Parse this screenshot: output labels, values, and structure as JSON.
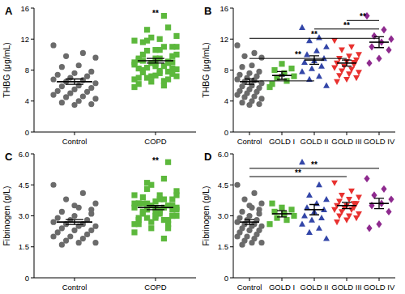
{
  "chart_data": [
    {
      "type": "scatter",
      "panel": "A",
      "y_label": "THBG (μg/mL)",
      "categories": [
        "Control",
        "COPD"
      ],
      "ylim": [
        0,
        16
      ],
      "yticks": [
        0,
        4,
        8,
        12,
        16
      ],
      "groups": [
        {
          "color": "#6b6b6b",
          "marker": "circle",
          "mean": 6.5,
          "sem": 0.35,
          "values": [
            11.2,
            10.2,
            9.8,
            9.6,
            8.6,
            8.4,
            7.8,
            7.6,
            7.4,
            7.2,
            7.0,
            6.8,
            6.7,
            6.5,
            6.3,
            6.0,
            5.9,
            5.7,
            5.5,
            5.3,
            5.2,
            5.0,
            4.8,
            4.6,
            4.5,
            4.3,
            4.0,
            3.8,
            3.6,
            3.5
          ]
        },
        {
          "color": "#5cb83c",
          "marker": "square",
          "mean": 9.2,
          "sem": 0.3,
          "values": [
            5.8,
            6.6,
            7.0,
            7.2,
            7.6,
            8.0,
            8.2,
            8.8,
            6.2,
            13.5,
            12.2,
            11.8,
            11.0,
            10.5,
            10.0,
            9.5,
            9.2,
            9.0,
            8.5,
            8.2,
            7.8,
            7.2,
            6.8,
            6.0,
            11.8,
            11.0,
            10.6,
            10.0,
            9.8,
            9.5,
            9.3,
            9.1,
            8.9,
            8.7,
            8.5,
            8.3,
            8.1,
            7.9,
            7.7,
            7.5,
            7.3,
            7.0,
            6.8,
            6.5,
            9.0,
            15.0,
            13.2,
            12.4,
            12.0,
            11.6,
            11.0,
            10.6,
            9.5,
            8.9
          ]
        }
      ],
      "annotations": [
        {
          "text": "**",
          "x": 1,
          "y": 15.4
        }
      ]
    },
    {
      "type": "scatter",
      "panel": "B",
      "y_label": "THBG (μg/mL)",
      "categories": [
        "Control",
        "GOLD I",
        "GOLD II",
        "GOLD III",
        "GOLD IV"
      ],
      "ylim": [
        0,
        16
      ],
      "yticks": [
        0,
        4,
        8,
        12,
        16
      ],
      "groups": [
        {
          "color": "#6b6b6b",
          "marker": "circle",
          "mean": 6.5,
          "sem": 0.35,
          "values": [
            11.2,
            10.2,
            9.8,
            9.6,
            8.6,
            8.4,
            7.8,
            7.6,
            7.4,
            7.2,
            7.0,
            6.8,
            6.7,
            6.5,
            6.3,
            6.0,
            5.9,
            5.7,
            5.5,
            5.3,
            5.2,
            5.0,
            4.8,
            4.6,
            4.5,
            4.3,
            4.0,
            3.8,
            3.6,
            3.5
          ]
        },
        {
          "color": "#5cb83c",
          "marker": "square",
          "mean": 7.3,
          "sem": 0.5,
          "values": [
            5.8,
            6.6,
            7.0,
            7.2,
            7.6,
            8.0,
            8.2,
            8.8,
            6.2
          ]
        },
        {
          "color": "#3346a8",
          "marker": "triangle",
          "mean": 9.3,
          "sem": 0.55,
          "values": [
            13.5,
            12.2,
            11.8,
            11.0,
            10.5,
            10.0,
            9.5,
            9.2,
            9.0,
            8.5,
            8.2,
            7.8,
            7.2,
            6.8,
            6.0
          ]
        },
        {
          "color": "#e8312f",
          "marker": "triangle-down",
          "mean": 8.9,
          "sem": 0.4,
          "values": [
            11.8,
            11.0,
            10.6,
            10.0,
            9.8,
            9.5,
            9.3,
            9.1,
            8.9,
            8.7,
            8.5,
            8.3,
            8.1,
            7.9,
            7.7,
            7.5,
            7.3,
            7.0,
            6.8,
            6.5,
            9.0
          ]
        },
        {
          "color": "#8e2a8e",
          "marker": "diamond",
          "mean": 11.6,
          "sem": 0.7,
          "values": [
            15.0,
            13.2,
            12.4,
            12.0,
            11.6,
            11.0,
            10.6,
            9.5,
            8.9
          ]
        }
      ],
      "annotations": [
        {
          "text": "**",
          "x1": 0,
          "x2": 2,
          "y": 6.6
        },
        {
          "text": "**",
          "x1": 0,
          "x2": 3,
          "y": 9.5
        },
        {
          "text": "**",
          "x1": 0,
          "x2": 4,
          "y": 12.1
        },
        {
          "text": "**",
          "x1": 2,
          "x2": 4,
          "y": 13.3
        },
        {
          "text": "**",
          "x1": 3,
          "x2": 4,
          "y": 14.4
        }
      ]
    },
    {
      "type": "scatter",
      "panel": "C",
      "y_label": "Fibrinogen (g/L)",
      "categories": [
        "Control",
        "COPD"
      ],
      "ylim": [
        0,
        6
      ],
      "yticks": [
        0,
        1.5,
        {
          "value": 3,
          "label": "3.0"
        },
        4.5,
        {
          "value": 6,
          "label": "6.0"
        }
      ],
      "groups": [
        {
          "color": "#6b6b6b",
          "marker": "circle",
          "mean": 2.7,
          "sem": 0.12,
          "values": [
            4.5,
            4.1,
            3.8,
            3.6,
            3.4,
            3.2,
            3.1,
            3.0,
            2.9,
            2.8,
            2.8,
            2.7,
            2.6,
            2.6,
            2.5,
            2.5,
            2.4,
            2.3,
            2.3,
            2.2,
            2.1,
            2.0,
            2.0,
            1.9,
            1.8,
            1.7,
            1.7,
            1.6,
            3.3,
            3.5
          ]
        },
        {
          "color": "#5cb83c",
          "marker": "square",
          "mean": 3.4,
          "sem": 0.1,
          "values": [
            2.6,
            2.8,
            2.9,
            3.0,
            3.1,
            3.2,
            3.3,
            3.4,
            3.6,
            5.6,
            4.5,
            4.0,
            3.8,
            3.6,
            3.4,
            3.3,
            3.2,
            3.0,
            2.9,
            2.8,
            2.6,
            2.4,
            2.2,
            1.9,
            4.6,
            4.2,
            4.0,
            3.9,
            3.8,
            3.7,
            3.6,
            3.5,
            3.5,
            3.4,
            3.4,
            3.3,
            3.3,
            3.2,
            3.1,
            3.0,
            3.0,
            2.9,
            2.8,
            2.7,
            3.6,
            4.8,
            4.3,
            4.0,
            3.8,
            3.6,
            3.5,
            3.2,
            2.6,
            2.4
          ]
        }
      ],
      "annotations": [
        {
          "text": "**",
          "x": 1,
          "y": 5.7
        }
      ]
    },
    {
      "type": "scatter",
      "panel": "D",
      "y_label": "Fibrinogen (g/L)",
      "categories": [
        "Control",
        "GOLD I",
        "GOLD II",
        "GOLD III",
        "GOLD IV"
      ],
      "ylim": [
        0,
        6
      ],
      "yticks": [
        0,
        1.5,
        {
          "value": 3,
          "label": "3.0"
        },
        4.5,
        {
          "value": 6,
          "label": "6.0"
        }
      ],
      "groups": [
        {
          "color": "#6b6b6b",
          "marker": "circle",
          "mean": 2.7,
          "sem": 0.12,
          "values": [
            4.5,
            4.1,
            3.8,
            3.6,
            3.4,
            3.2,
            3.1,
            3.0,
            2.9,
            2.8,
            2.8,
            2.7,
            2.6,
            2.6,
            2.5,
            2.5,
            2.4,
            2.3,
            2.3,
            2.2,
            2.1,
            2.0,
            2.0,
            1.9,
            1.8,
            1.7,
            1.7,
            1.6,
            3.3,
            3.5
          ]
        },
        {
          "color": "#5cb83c",
          "marker": "square",
          "mean": 3.1,
          "sem": 0.15,
          "values": [
            2.6,
            2.8,
            2.9,
            3.0,
            3.1,
            3.2,
            3.3,
            3.4,
            3.6
          ]
        },
        {
          "color": "#3346a8",
          "marker": "triangle",
          "mean": 3.3,
          "sem": 0.25,
          "values": [
            5.6,
            4.5,
            4.0,
            3.8,
            3.6,
            3.4,
            3.3,
            3.2,
            3.0,
            2.9,
            2.8,
            2.6,
            2.4,
            2.2,
            1.9
          ]
        },
        {
          "color": "#e8312f",
          "marker": "triangle-down",
          "mean": 3.5,
          "sem": 0.15,
          "values": [
            4.6,
            4.2,
            4.0,
            3.9,
            3.8,
            3.7,
            3.6,
            3.5,
            3.5,
            3.4,
            3.4,
            3.3,
            3.3,
            3.2,
            3.1,
            3.0,
            3.0,
            2.9,
            2.8,
            2.7,
            3.6
          ]
        },
        {
          "color": "#8e2a8e",
          "marker": "diamond",
          "mean": 3.6,
          "sem": 0.25,
          "values": [
            4.8,
            4.3,
            4.0,
            3.8,
            3.6,
            3.5,
            3.2,
            2.6,
            2.4
          ]
        }
      ],
      "annotations": [
        {
          "text": "**",
          "x1": 0,
          "x2": 3,
          "y": 4.9
        },
        {
          "text": "**",
          "x1": 0,
          "x2": 4,
          "y": 5.3
        }
      ]
    }
  ]
}
